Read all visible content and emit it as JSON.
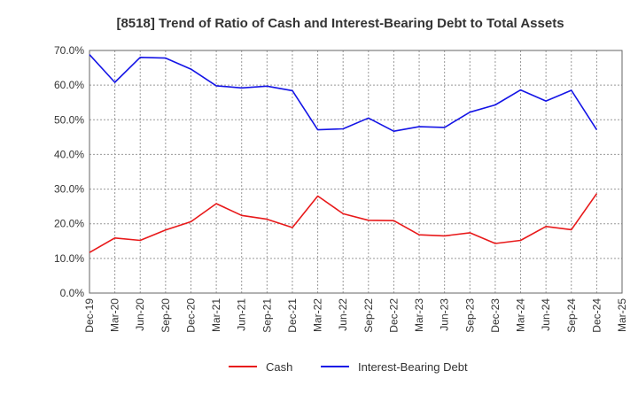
{
  "chart_data": {
    "type": "line",
    "title": "[8518]  Trend of Ratio of Cash and Interest-Bearing Debt to Total Assets",
    "xlabel": "",
    "ylabel": "",
    "x": [
      "Dec-19",
      "Mar-20",
      "Jun-20",
      "Sep-20",
      "Dec-20",
      "Mar-21",
      "Jun-21",
      "Sep-21",
      "Dec-21",
      "Mar-22",
      "Jun-22",
      "Sep-22",
      "Dec-22",
      "Mar-23",
      "Jun-23",
      "Sep-23",
      "Dec-23",
      "Mar-24",
      "Jun-24",
      "Sep-24",
      "Dec-24",
      "Mar-25"
    ],
    "x_tick_labels": [
      "Dec-19",
      "Mar-20",
      "Jun-20",
      "Sep-20",
      "Dec-20",
      "Mar-21",
      "Jun-21",
      "Sep-21",
      "Dec-21",
      "Mar-22",
      "Jun-22",
      "Sep-22",
      "Dec-22",
      "Mar-23",
      "Jun-23",
      "Sep-23",
      "Dec-23",
      "Mar-24",
      "Jun-24",
      "Sep-24",
      "Dec-24",
      "Mar-25"
    ],
    "y_tick_labels": [
      "0.0%",
      "10.0%",
      "20.0%",
      "30.0%",
      "40.0%",
      "50.0%",
      "60.0%",
      "70.0%"
    ],
    "y_ticks": [
      0,
      10,
      20,
      30,
      40,
      50,
      60,
      70
    ],
    "ylim": [
      0,
      70
    ],
    "grid": true,
    "legend_position": "bottom",
    "series": [
      {
        "name": "Cash",
        "color": "#e8191a",
        "values": [
          11.7,
          15.9,
          15.2,
          18.2,
          20.6,
          25.8,
          22.4,
          21.3,
          18.9,
          28.0,
          22.9,
          21.0,
          20.9,
          16.8,
          16.5,
          17.4,
          14.3,
          15.2,
          19.2,
          18.3,
          28.7,
          null
        ]
      },
      {
        "name": "Interest-Bearing Debt",
        "color": "#1414e6",
        "values": [
          68.8,
          60.8,
          68.0,
          67.8,
          64.6,
          59.8,
          59.2,
          59.7,
          58.4,
          47.1,
          47.4,
          50.5,
          46.7,
          48.0,
          47.8,
          52.2,
          54.3,
          58.6,
          55.4,
          58.5,
          47.1,
          null
        ]
      }
    ]
  }
}
